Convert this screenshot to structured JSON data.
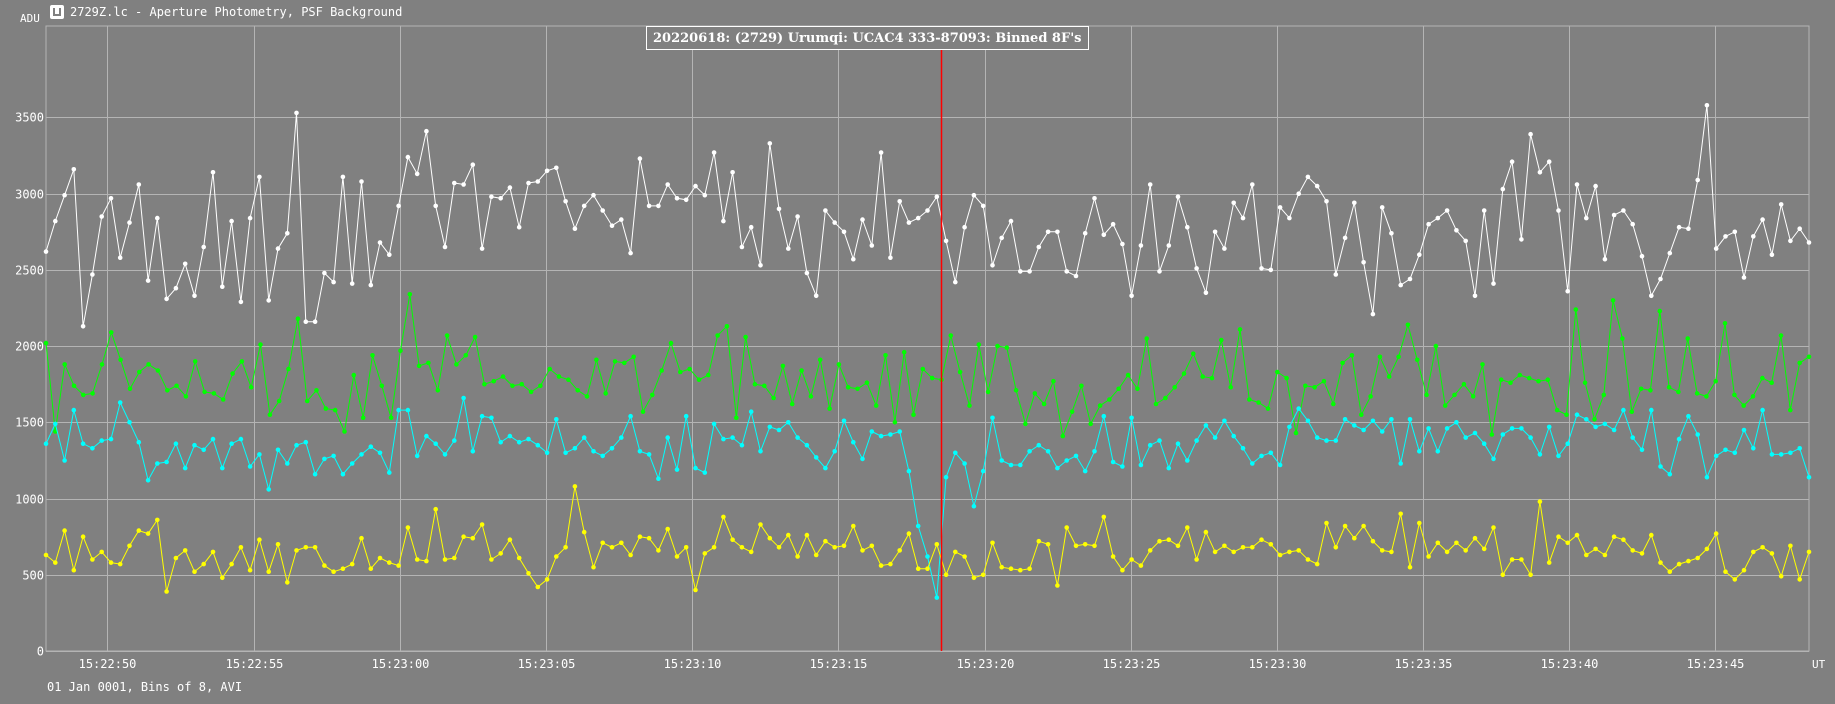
{
  "window": {
    "title": "2729Z.lc - Aperture Photometry, PSF Background",
    "icon": "app-icon"
  },
  "footer": "01 Jan 0001, Bins of 8, AVI",
  "colors": {
    "background": "#808080",
    "grid": "#b4b4b4",
    "marker": "#ff0000",
    "white_series": "#ffffff",
    "green_series": "#00ff00",
    "cyan_series": "#00ffff",
    "yellow_series": "#ffff00"
  },
  "chart_data": {
    "type": "line",
    "title": "20220618: (2729) Urumqi: UCAC4 333-87093: Binned 8F's",
    "ylabel": "ADU",
    "xlabel": "UT",
    "ylim": [
      0,
      4100
    ],
    "y_ticks": [
      "0",
      "500",
      "1000",
      "1500",
      "2000",
      "2500",
      "3000",
      "3500"
    ],
    "x_ticks": [
      "15:22:50",
      "15:22:55",
      "15:23:00",
      "15:23:05",
      "15:23:10",
      "15:23:15",
      "15:23:20",
      "15:23:25",
      "15:23:30",
      "15:23:35",
      "15:23:40",
      "15:23:45"
    ],
    "x_start": "15:22:47.9",
    "x_end": "15:23:48.2",
    "marker_at": "15:23:18.5",
    "grid": true,
    "series": [
      {
        "color": "#ffffff",
        "values": [
          2620,
          2820,
          2990,
          3160,
          2130,
          2470,
          2850,
          2970,
          2580,
          2810,
          3060,
          2430,
          2840,
          2310,
          2380,
          2540,
          2330,
          2650,
          3140,
          2390,
          2820,
          2290,
          2840,
          3110,
          2300,
          2640,
          2740,
          3530,
          2160,
          2160,
          2480,
          2420,
          3110,
          2410,
          3080,
          2400,
          2680,
          2600,
          2920,
          3240,
          3130,
          3410,
          2920,
          2650,
          3070,
          3060,
          3190,
          2640,
          2980,
          2970,
          3040,
          2780,
          3070,
          3080,
          3150,
          3170,
          2950,
          2770,
          2920,
          2990,
          2890,
          2790,
          2830,
          2610,
          3230,
          2920,
          2920,
          3060,
          2970,
          2960,
          3050,
          2990,
          3270,
          2820,
          3140,
          2650,
          2780,
          2530,
          3330,
          2900,
          2640,
          2850,
          2480,
          2330,
          2890,
          2810,
          2750,
          2570,
          2830,
          2660,
          3270,
          2580,
          2950,
          2810,
          2840,
          2890,
          2980,
          2690,
          2420,
          2780,
          2990,
          2920,
          2530,
          2710,
          2820,
          2490,
          2490,
          2650,
          2750,
          2750,
          2490,
          2460,
          2740,
          2970,
          2730,
          2800,
          2670,
          2330,
          2660,
          3060,
          2490,
          2660,
          2980,
          2780,
          2510,
          2350,
          2750,
          2640,
          2940,
          2840,
          3060,
          2510,
          2500,
          2910,
          2840,
          3000,
          3110,
          3050,
          2950,
          2470,
          2710,
          2940,
          2550,
          2210,
          2910,
          2740,
          2400,
          2440,
          2600,
          2800,
          2840,
          2890,
          2760,
          2690,
          2330,
          2890,
          2410,
          3030,
          3210,
          2700,
          3390,
          3140,
          3210,
          2890,
          2360,
          3060,
          2840,
          3050,
          2570,
          2860,
          2890,
          2800,
          2590,
          2330,
          2440,
          2610,
          2780,
          2770,
          3090,
          3580,
          2640,
          2720,
          2750,
          2450,
          2720,
          2830,
          2600,
          2930,
          2690,
          2770,
          2680
        ]
      },
      {
        "color": "#00ff00",
        "values": [
          2020,
          1440,
          1880,
          1740,
          1680,
          1690,
          1880,
          2090,
          1910,
          1720,
          1830,
          1880,
          1840,
          1710,
          1740,
          1670,
          1900,
          1700,
          1690,
          1650,
          1820,
          1900,
          1730,
          2010,
          1550,
          1640,
          1850,
          2180,
          1640,
          1710,
          1590,
          1580,
          1440,
          1810,
          1530,
          1940,
          1740,
          1530,
          1970,
          2340,
          1870,
          1890,
          1710,
          2070,
          1880,
          1940,
          2060,
          1750,
          1770,
          1800,
          1740,
          1750,
          1700,
          1740,
          1850,
          1800,
          1780,
          1710,
          1670,
          1910,
          1690,
          1900,
          1890,
          1930,
          1570,
          1680,
          1840,
          2020,
          1830,
          1850,
          1780,
          1810,
          2070,
          2130,
          1530,
          2060,
          1750,
          1740,
          1660,
          1870,
          1620,
          1840,
          1670,
          1910,
          1590,
          1880,
          1730,
          1720,
          1760,
          1610,
          1940,
          1500,
          1960,
          1550,
          1850,
          1790,
          1780,
          2070,
          1830,
          1610,
          2010,
          1700,
          2000,
          1990,
          1710,
          1490,
          1690,
          1620,
          1770,
          1410,
          1570,
          1740,
          1490,
          1610,
          1650,
          1720,
          1810,
          1720,
          2050,
          1620,
          1660,
          1730,
          1820,
          1950,
          1800,
          1790,
          2040,
          1730,
          2110,
          1650,
          1630,
          1590,
          1830,
          1790,
          1430,
          1740,
          1730,
          1770,
          1620,
          1890,
          1940,
          1550,
          1670,
          1930,
          1800,
          1930,
          2140,
          1910,
          1680,
          2000,
          1610,
          1680,
          1750,
          1670,
          1880,
          1420,
          1780,
          1760,
          1810,
          1790,
          1770,
          1780,
          1580,
          1550,
          2240,
          1760,
          1520,
          1680,
          2300,
          2050,
          1570,
          1720,
          1710,
          2230,
          1730,
          1700,
          2050,
          1690,
          1670,
          1770,
          2150,
          1680,
          1610,
          1670,
          1790,
          1760,
          2070,
          1580,
          1890,
          1930
        ]
      },
      {
        "color": "#00ffff",
        "values": [
          1360,
          1490,
          1250,
          1580,
          1360,
          1330,
          1380,
          1390,
          1630,
          1500,
          1370,
          1120,
          1230,
          1240,
          1360,
          1200,
          1350,
          1320,
          1390,
          1200,
          1360,
          1390,
          1210,
          1290,
          1060,
          1320,
          1230,
          1350,
          1370,
          1160,
          1260,
          1280,
          1160,
          1230,
          1290,
          1340,
          1300,
          1170,
          1580,
          1580,
          1280,
          1410,
          1360,
          1290,
          1380,
          1660,
          1310,
          1540,
          1530,
          1370,
          1410,
          1370,
          1390,
          1350,
          1300,
          1520,
          1300,
          1330,
          1400,
          1310,
          1280,
          1330,
          1400,
          1540,
          1310,
          1290,
          1130,
          1400,
          1190,
          1540,
          1200,
          1170,
          1490,
          1390,
          1400,
          1350,
          1570,
          1310,
          1470,
          1450,
          1500,
          1400,
          1350,
          1270,
          1200,
          1310,
          1510,
          1370,
          1260,
          1440,
          1410,
          1420,
          1440,
          1180,
          820,
          620,
          350,
          1140,
          1300,
          1230,
          950,
          1180,
          1530,
          1250,
          1220,
          1220,
          1310,
          1350,
          1310,
          1200,
          1250,
          1280,
          1180,
          1310,
          1540,
          1240,
          1210,
          1530,
          1220,
          1350,
          1380,
          1200,
          1360,
          1250,
          1380,
          1480,
          1400,
          1510,
          1410,
          1330,
          1230,
          1280,
          1300,
          1220,
          1470,
          1590,
          1510,
          1400,
          1380,
          1380,
          1520,
          1480,
          1450,
          1510,
          1440,
          1520,
          1230,
          1520,
          1310,
          1460,
          1310,
          1460,
          1500,
          1400,
          1430,
          1360,
          1260,
          1420,
          1460,
          1460,
          1400,
          1290,
          1470,
          1280,
          1360,
          1550,
          1520,
          1470,
          1490,
          1450,
          1580,
          1400,
          1320,
          1580,
          1210,
          1160,
          1390,
          1540,
          1420,
          1140,
          1280,
          1320,
          1300,
          1450,
          1330,
          1580,
          1290,
          1290,
          1300,
          1330,
          1140
        ]
      },
      {
        "color": "#ffff00",
        "values": [
          630,
          580,
          790,
          530,
          750,
          600,
          650,
          580,
          570,
          690,
          790,
          770,
          860,
          390,
          610,
          660,
          520,
          570,
          650,
          480,
          570,
          680,
          530,
          730,
          520,
          700,
          450,
          660,
          680,
          680,
          560,
          520,
          540,
          570,
          740,
          540,
          610,
          580,
          560,
          810,
          600,
          590,
          930,
          600,
          610,
          750,
          740,
          830,
          600,
          640,
          730,
          610,
          510,
          420,
          470,
          620,
          680,
          1080,
          780,
          550,
          710,
          680,
          710,
          630,
          750,
          740,
          660,
          800,
          620,
          680,
          400,
          640,
          680,
          880,
          730,
          680,
          650,
          830,
          740,
          680,
          760,
          620,
          760,
          630,
          720,
          680,
          690,
          820,
          660,
          690,
          560,
          570,
          660,
          770,
          540,
          540,
          700,
          500,
          650,
          620,
          480,
          500,
          710,
          550,
          540,
          530,
          540,
          720,
          700,
          430,
          810,
          690,
          700,
          690,
          880,
          620,
          530,
          600,
          560,
          660,
          720,
          730,
          690,
          810,
          600,
          780,
          650,
          690,
          650,
          680,
          680,
          730,
          700,
          630,
          650,
          660,
          600,
          570,
          840,
          680,
          820,
          740,
          820,
          720,
          660,
          650,
          900,
          550,
          840,
          620,
          710,
          650,
          710,
          660,
          740,
          670,
          810,
          500,
          600,
          600,
          500,
          980,
          580,
          750,
          710,
          760,
          630,
          670,
          630,
          750,
          730,
          660,
          640,
          760,
          580,
          520,
          570,
          590,
          610,
          670,
          770,
          520,
          470,
          530,
          650,
          680,
          640,
          490,
          690,
          470,
          650
        ]
      }
    ]
  }
}
